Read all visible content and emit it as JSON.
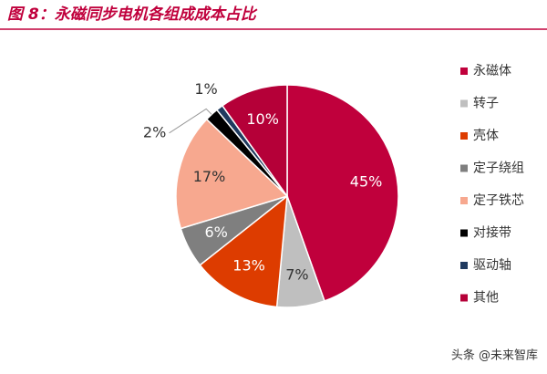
{
  "chart_data": {
    "type": "pie",
    "title": "图 8：永磁同步电机各组成成本占比",
    "categories": [
      "永磁体",
      "转子",
      "壳体",
      "定子绕组",
      "定子铁芯",
      "对接带",
      "驱动轴",
      "其他"
    ],
    "values": [
      45,
      7,
      13,
      6,
      17,
      2,
      1,
      10
    ],
    "value_labels": [
      "45%",
      "7%",
      "13%",
      "6%",
      "17%",
      "2%",
      "1%",
      "10%"
    ],
    "colors": [
      "#c0003c",
      "#bfbfbf",
      "#dd3c00",
      "#7f7f7f",
      "#f7a88f",
      "#000000",
      "#1f3a5f",
      "#b50038"
    ],
    "legend": "right"
  },
  "watermark": "头条 @未来智库"
}
